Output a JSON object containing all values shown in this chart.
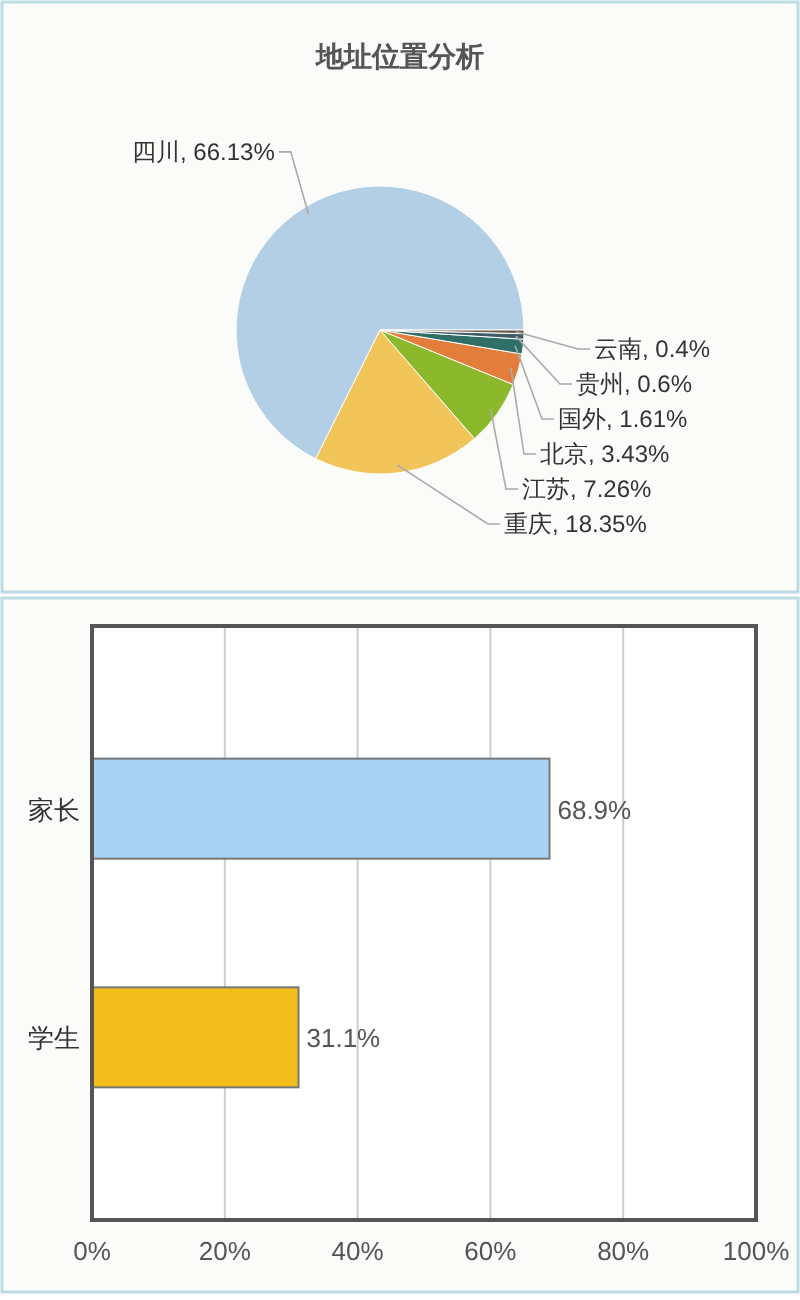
{
  "chart_data": [
    {
      "type": "pie",
      "title": "地址位置分析",
      "categories": [
        "四川",
        "重庆",
        "江苏",
        "北京",
        "国外",
        "贵州",
        "云南"
      ],
      "values": [
        66.13,
        18.35,
        7.26,
        3.43,
        1.61,
        0.6,
        0.4
      ],
      "value_labels": [
        "66.13%",
        "18.35%",
        "7.26%",
        "3.43%",
        "1.61%",
        "0.6%",
        "0.4%"
      ],
      "colors": [
        "#b3cfe6",
        "#f2c55a",
        "#8cb82b",
        "#e27d3c",
        "#2f6f68",
        "#3e5c68",
        "#6b5a4c"
      ]
    },
    {
      "type": "bar",
      "orientation": "horizontal",
      "categories": [
        "家长",
        "学生"
      ],
      "values": [
        68.9,
        31.1
      ],
      "value_labels": [
        "68.9%",
        "31.1%"
      ],
      "colors": [
        "#a9d3f3",
        "#f3bd1b"
      ],
      "xlim": [
        0,
        100
      ],
      "xticks": [
        {
          "value": 0,
          "label": "0%"
        },
        {
          "value": 20,
          "label": "20%"
        },
        {
          "value": 40,
          "label": "40%"
        },
        {
          "value": 60,
          "label": "60%"
        },
        {
          "value": 80,
          "label": "80%"
        },
        {
          "value": 100,
          "label": "100%"
        }
      ],
      "grid": "x"
    }
  ]
}
